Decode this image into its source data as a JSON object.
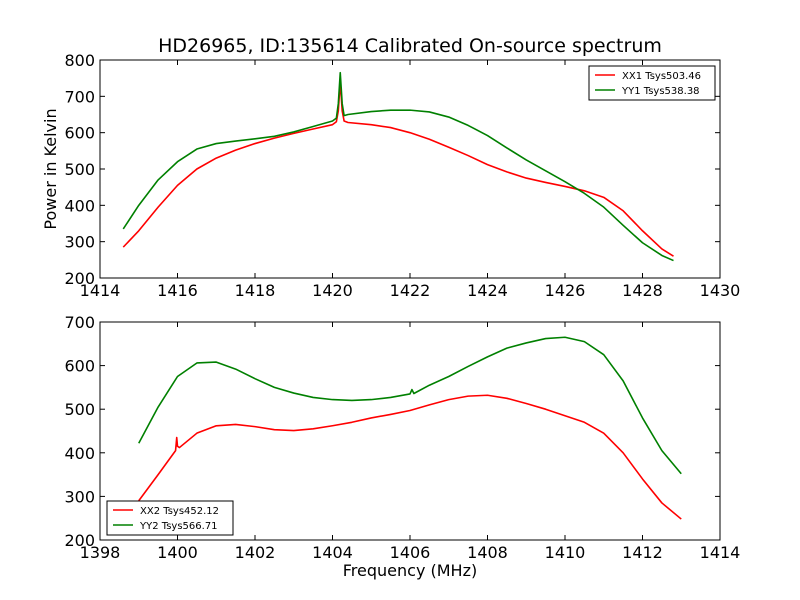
{
  "chart_data": [
    {
      "type": "line",
      "title": "HD26965, ID:135614 Calibrated On-source spectrum",
      "xlabel": "",
      "ylabel": "Power in Kelvin",
      "xlim": [
        1414,
        1430
      ],
      "ylim": [
        200,
        800
      ],
      "xticks": [
        1414,
        1416,
        1418,
        1420,
        1422,
        1424,
        1426,
        1428,
        1430
      ],
      "yticks": [
        200,
        300,
        400,
        500,
        600,
        700,
        800
      ],
      "legend_position": "top-right",
      "series": [
        {
          "name": "XX1 Tsys503.46",
          "color": "#ff0000",
          "x": [
            1414.6,
            1415.0,
            1415.5,
            1416.0,
            1416.5,
            1417.0,
            1417.5,
            1418.0,
            1418.5,
            1419.0,
            1419.5,
            1420.0,
            1420.1,
            1420.15,
            1420.2,
            1420.25,
            1420.3,
            1420.4,
            1421.0,
            1421.5,
            1422.0,
            1422.5,
            1423.0,
            1423.5,
            1424.0,
            1424.5,
            1425.0,
            1425.5,
            1426.0,
            1426.5,
            1427.0,
            1427.5,
            1428.0,
            1428.5,
            1428.8
          ],
          "y": [
            285,
            330,
            395,
            455,
            500,
            530,
            552,
            570,
            585,
            598,
            610,
            622,
            630,
            660,
            740,
            660,
            632,
            628,
            622,
            614,
            600,
            582,
            560,
            537,
            512,
            492,
            475,
            463,
            452,
            440,
            422,
            385,
            330,
            280,
            260
          ]
        },
        {
          "name": "YY1 Tsys538.38",
          "color": "#008000",
          "x": [
            1414.6,
            1415.0,
            1415.5,
            1416.0,
            1416.5,
            1417.0,
            1417.5,
            1418.0,
            1418.5,
            1419.0,
            1419.5,
            1420.0,
            1420.1,
            1420.15,
            1420.2,
            1420.25,
            1420.3,
            1420.4,
            1421.0,
            1421.5,
            1422.0,
            1422.5,
            1423.0,
            1423.5,
            1424.0,
            1424.5,
            1425.0,
            1425.5,
            1426.0,
            1426.5,
            1427.0,
            1427.5,
            1428.0,
            1428.5,
            1428.8
          ],
          "y": [
            335,
            400,
            470,
            520,
            555,
            570,
            577,
            583,
            590,
            602,
            617,
            632,
            640,
            680,
            765,
            680,
            647,
            650,
            658,
            662,
            662,
            657,
            643,
            620,
            592,
            558,
            525,
            495,
            465,
            433,
            395,
            345,
            297,
            262,
            248
          ]
        }
      ]
    },
    {
      "type": "line",
      "title": "",
      "xlabel": "Frequency (MHz)",
      "ylabel": "",
      "xlim": [
        1398,
        1414
      ],
      "ylim": [
        200,
        700
      ],
      "xticks": [
        1398,
        1400,
        1402,
        1404,
        1406,
        1408,
        1410,
        1412,
        1414
      ],
      "yticks": [
        200,
        300,
        400,
        500,
        600,
        700
      ],
      "legend_position": "bottom-left",
      "series": [
        {
          "name": "XX2 Tsys452.12",
          "color": "#ff0000",
          "x": [
            1399.0,
            1399.5,
            1399.95,
            1399.98,
            1400.0,
            1400.05,
            1400.5,
            1401.0,
            1401.5,
            1402.0,
            1402.5,
            1403.0,
            1403.5,
            1404.0,
            1404.5,
            1405.0,
            1405.5,
            1406.0,
            1406.5,
            1407.0,
            1407.5,
            1408.0,
            1408.5,
            1409.0,
            1409.5,
            1410.0,
            1410.5,
            1411.0,
            1411.5,
            1412.0,
            1412.5,
            1413.0
          ],
          "y": [
            290,
            350,
            405,
            435,
            415,
            412,
            445,
            462,
            465,
            460,
            453,
            451,
            455,
            462,
            470,
            480,
            488,
            497,
            510,
            522,
            530,
            532,
            525,
            513,
            500,
            485,
            470,
            445,
            400,
            340,
            285,
            248
          ]
        },
        {
          "name": "YY2 Tsys566.71",
          "color": "#008000",
          "x": [
            1399.0,
            1399.5,
            1400.0,
            1400.5,
            1401.0,
            1401.5,
            1402.0,
            1402.5,
            1403.0,
            1403.5,
            1404.0,
            1404.5,
            1405.0,
            1405.5,
            1406.0,
            1406.05,
            1406.1,
            1406.5,
            1407.0,
            1407.5,
            1408.0,
            1408.5,
            1409.0,
            1409.5,
            1410.0,
            1410.5,
            1411.0,
            1411.5,
            1412.0,
            1412.5,
            1413.0
          ],
          "y": [
            422,
            505,
            575,
            606,
            608,
            592,
            570,
            550,
            537,
            527,
            522,
            520,
            522,
            527,
            535,
            545,
            536,
            555,
            575,
            598,
            620,
            640,
            652,
            662,
            665,
            655,
            625,
            565,
            480,
            405,
            352
          ]
        }
      ]
    }
  ]
}
